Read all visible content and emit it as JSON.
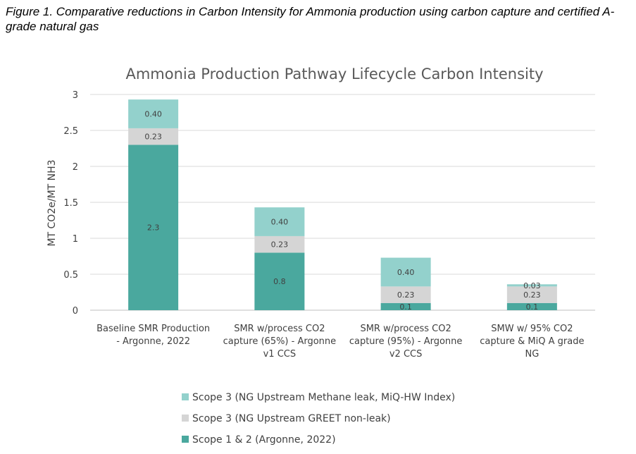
{
  "figure_caption": "Figure 1.  Comparative reductions in Carbon Intensity for Ammonia production using carbon capture and certified A-grade natural gas",
  "chart_data": {
    "type": "bar",
    "stacked": true,
    "title": "Ammonia Production Pathway Lifecycle Carbon Intensity",
    "xlabel": "",
    "ylabel": "MT CO2e/MT NH3",
    "ylim": [
      0,
      3
    ],
    "yticks": [
      "0",
      "0.5",
      "1",
      "1.5",
      "2",
      "2.5",
      "3"
    ],
    "grid": true,
    "legend_position": "bottom",
    "categories": [
      [
        "Baseline SMR Production",
        "- Argonne, 2022"
      ],
      [
        "SMR w/process CO2",
        "capture (65%) - Argonne",
        "v1 CCS"
      ],
      [
        "SMR w/process CO2",
        "capture (95%) - Argonne",
        "v2 CCS"
      ],
      [
        "SMW w/ 95% CO2",
        "capture & MiQ A grade",
        "NG"
      ]
    ],
    "series": [
      {
        "name": "Scope 1 & 2 (Argonne, 2022)",
        "color": "#4aa89e",
        "values": [
          2.3,
          0.8,
          0.1,
          0.1
        ],
        "labels": [
          "2.3",
          "0.8",
          "0.1",
          "0.1"
        ]
      },
      {
        "name": "Scope 3 (NG Upstream GREET non-leak)",
        "color": "#d5d5d5",
        "values": [
          0.23,
          0.23,
          0.23,
          0.23
        ],
        "labels": [
          "0.23",
          "0.23",
          "0.23",
          "0.23"
        ]
      },
      {
        "name": "Scope 3 (NG Upstream Methane leak, MiQ-HW Index)",
        "color": "#93d1cc",
        "values": [
          0.4,
          0.4,
          0.4,
          0.03
        ],
        "labels": [
          "0.40",
          "0.40",
          "0.40",
          "0.03"
        ]
      }
    ],
    "legend_order": [
      2,
      1,
      0
    ]
  }
}
